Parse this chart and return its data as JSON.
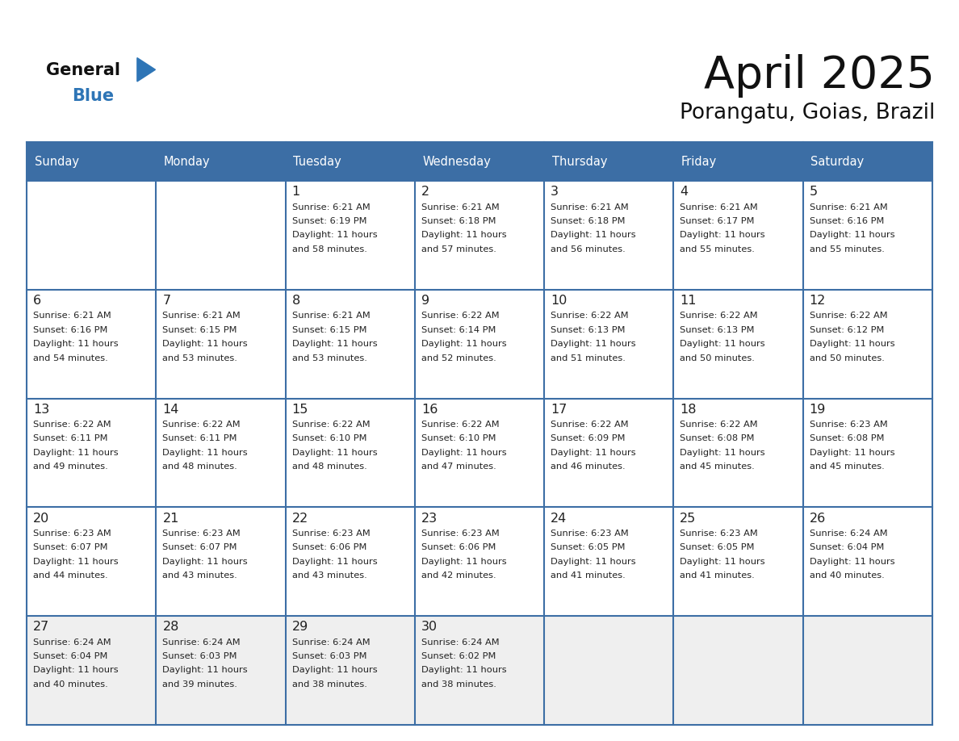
{
  "title": "April 2025",
  "subtitle": "Porangatu, Goias, Brazil",
  "days_of_week": [
    "Sunday",
    "Monday",
    "Tuesday",
    "Wednesday",
    "Thursday",
    "Friday",
    "Saturday"
  ],
  "header_bg": "#3C6EA5",
  "header_text": "#FFFFFF",
  "cell_bg_white": "#FFFFFF",
  "cell_bg_gray": "#EFEFEF",
  "grid_line_color": "#3C6EA5",
  "day_number_color": "#222222",
  "content_color": "#222222",
  "title_color": "#111111",
  "logo_general_color": "#111111",
  "logo_blue_color": "#2E75B6",
  "calendar_data": [
    [
      null,
      null,
      {
        "day": "1",
        "sunrise": "6:21 AM",
        "sunset": "6:19 PM",
        "daylight_l1": "Daylight: 11 hours",
        "daylight_l2": "and 58 minutes."
      },
      {
        "day": "2",
        "sunrise": "6:21 AM",
        "sunset": "6:18 PM",
        "daylight_l1": "Daylight: 11 hours",
        "daylight_l2": "and 57 minutes."
      },
      {
        "day": "3",
        "sunrise": "6:21 AM",
        "sunset": "6:18 PM",
        "daylight_l1": "Daylight: 11 hours",
        "daylight_l2": "and 56 minutes."
      },
      {
        "day": "4",
        "sunrise": "6:21 AM",
        "sunset": "6:17 PM",
        "daylight_l1": "Daylight: 11 hours",
        "daylight_l2": "and 55 minutes."
      },
      {
        "day": "5",
        "sunrise": "6:21 AM",
        "sunset": "6:16 PM",
        "daylight_l1": "Daylight: 11 hours",
        "daylight_l2": "and 55 minutes."
      }
    ],
    [
      {
        "day": "6",
        "sunrise": "6:21 AM",
        "sunset": "6:16 PM",
        "daylight_l1": "Daylight: 11 hours",
        "daylight_l2": "and 54 minutes."
      },
      {
        "day": "7",
        "sunrise": "6:21 AM",
        "sunset": "6:15 PM",
        "daylight_l1": "Daylight: 11 hours",
        "daylight_l2": "and 53 minutes."
      },
      {
        "day": "8",
        "sunrise": "6:21 AM",
        "sunset": "6:15 PM",
        "daylight_l1": "Daylight: 11 hours",
        "daylight_l2": "and 53 minutes."
      },
      {
        "day": "9",
        "sunrise": "6:22 AM",
        "sunset": "6:14 PM",
        "daylight_l1": "Daylight: 11 hours",
        "daylight_l2": "and 52 minutes."
      },
      {
        "day": "10",
        "sunrise": "6:22 AM",
        "sunset": "6:13 PM",
        "daylight_l1": "Daylight: 11 hours",
        "daylight_l2": "and 51 minutes."
      },
      {
        "day": "11",
        "sunrise": "6:22 AM",
        "sunset": "6:13 PM",
        "daylight_l1": "Daylight: 11 hours",
        "daylight_l2": "and 50 minutes."
      },
      {
        "day": "12",
        "sunrise": "6:22 AM",
        "sunset": "6:12 PM",
        "daylight_l1": "Daylight: 11 hours",
        "daylight_l2": "and 50 minutes."
      }
    ],
    [
      {
        "day": "13",
        "sunrise": "6:22 AM",
        "sunset": "6:11 PM",
        "daylight_l1": "Daylight: 11 hours",
        "daylight_l2": "and 49 minutes."
      },
      {
        "day": "14",
        "sunrise": "6:22 AM",
        "sunset": "6:11 PM",
        "daylight_l1": "Daylight: 11 hours",
        "daylight_l2": "and 48 minutes."
      },
      {
        "day": "15",
        "sunrise": "6:22 AM",
        "sunset": "6:10 PM",
        "daylight_l1": "Daylight: 11 hours",
        "daylight_l2": "and 48 minutes."
      },
      {
        "day": "16",
        "sunrise": "6:22 AM",
        "sunset": "6:10 PM",
        "daylight_l1": "Daylight: 11 hours",
        "daylight_l2": "and 47 minutes."
      },
      {
        "day": "17",
        "sunrise": "6:22 AM",
        "sunset": "6:09 PM",
        "daylight_l1": "Daylight: 11 hours",
        "daylight_l2": "and 46 minutes."
      },
      {
        "day": "18",
        "sunrise": "6:22 AM",
        "sunset": "6:08 PM",
        "daylight_l1": "Daylight: 11 hours",
        "daylight_l2": "and 45 minutes."
      },
      {
        "day": "19",
        "sunrise": "6:23 AM",
        "sunset": "6:08 PM",
        "daylight_l1": "Daylight: 11 hours",
        "daylight_l2": "and 45 minutes."
      }
    ],
    [
      {
        "day": "20",
        "sunrise": "6:23 AM",
        "sunset": "6:07 PM",
        "daylight_l1": "Daylight: 11 hours",
        "daylight_l2": "and 44 minutes."
      },
      {
        "day": "21",
        "sunrise": "6:23 AM",
        "sunset": "6:07 PM",
        "daylight_l1": "Daylight: 11 hours",
        "daylight_l2": "and 43 minutes."
      },
      {
        "day": "22",
        "sunrise": "6:23 AM",
        "sunset": "6:06 PM",
        "daylight_l1": "Daylight: 11 hours",
        "daylight_l2": "and 43 minutes."
      },
      {
        "day": "23",
        "sunrise": "6:23 AM",
        "sunset": "6:06 PM",
        "daylight_l1": "Daylight: 11 hours",
        "daylight_l2": "and 42 minutes."
      },
      {
        "day": "24",
        "sunrise": "6:23 AM",
        "sunset": "6:05 PM",
        "daylight_l1": "Daylight: 11 hours",
        "daylight_l2": "and 41 minutes."
      },
      {
        "day": "25",
        "sunrise": "6:23 AM",
        "sunset": "6:05 PM",
        "daylight_l1": "Daylight: 11 hours",
        "daylight_l2": "and 41 minutes."
      },
      {
        "day": "26",
        "sunrise": "6:24 AM",
        "sunset": "6:04 PM",
        "daylight_l1": "Daylight: 11 hours",
        "daylight_l2": "and 40 minutes."
      }
    ],
    [
      {
        "day": "27",
        "sunrise": "6:24 AM",
        "sunset": "6:04 PM",
        "daylight_l1": "Daylight: 11 hours",
        "daylight_l2": "and 40 minutes."
      },
      {
        "day": "28",
        "sunrise": "6:24 AM",
        "sunset": "6:03 PM",
        "daylight_l1": "Daylight: 11 hours",
        "daylight_l2": "and 39 minutes."
      },
      {
        "day": "29",
        "sunrise": "6:24 AM",
        "sunset": "6:03 PM",
        "daylight_l1": "Daylight: 11 hours",
        "daylight_l2": "and 38 minutes."
      },
      {
        "day": "30",
        "sunrise": "6:24 AM",
        "sunset": "6:02 PM",
        "daylight_l1": "Daylight: 11 hours",
        "daylight_l2": "and 38 minutes."
      },
      null,
      null,
      null
    ]
  ],
  "row5_bg": "#EFEFEF",
  "num_cols": 7,
  "num_rows": 5
}
